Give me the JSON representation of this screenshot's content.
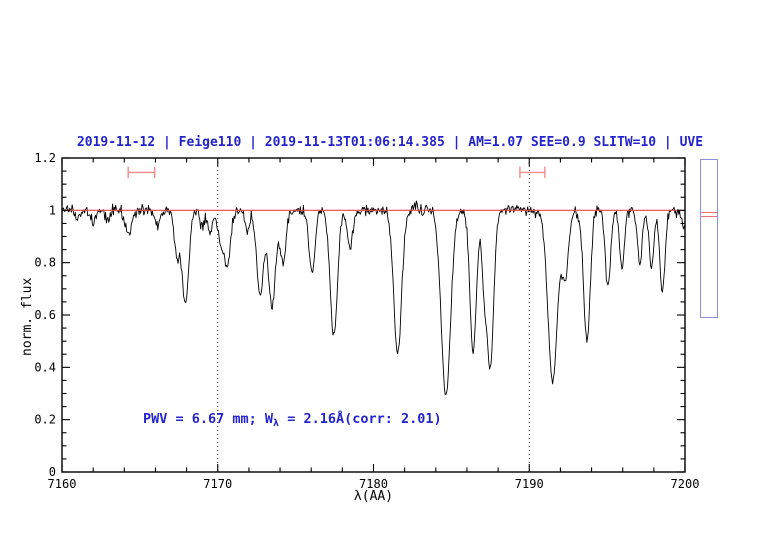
{
  "page": {
    "background": "#ffffff"
  },
  "chart_data": {
    "type": "line",
    "title": "2019-11-12 | Feige110 | 2019-11-13T01:06:14.385 | AM=1.07 SEE=0.9 SLITW=10 | UVE",
    "title_color": "#2424cd",
    "xlabel": "λ(AA)",
    "ylabel": "norm. flux",
    "xlim": [
      7160,
      7200
    ],
    "ylim": [
      0,
      1.2
    ],
    "x_major_ticks": [
      7160,
      7170,
      7180,
      7190,
      7200
    ],
    "x_minor_step": 2,
    "y_major_ticks": [
      0,
      0.2,
      0.4,
      0.6,
      0.8,
      1,
      1.2
    ],
    "y_major_tick_labels": [
      "0",
      "0.2",
      "0.4",
      "0.6",
      "0.8",
      "1",
      "1.2"
    ],
    "y_minor_step": 0.05,
    "guide_lines_x": [
      7170,
      7190
    ],
    "spectrum_color": "#000000",
    "continuum": {
      "level": 1.0,
      "color": "#e04848"
    },
    "noise_sigma": 0.011,
    "sample_step_angstrom": 0.05,
    "absorption_lines_format": [
      "center_angstrom",
      "depth_below_continuum",
      "fwhm_angstrom"
    ],
    "absorption_lines": [
      [
        7161.0,
        0.04,
        0.3
      ],
      [
        7162.0,
        0.05,
        0.35
      ],
      [
        7162.9,
        0.045,
        0.3
      ],
      [
        7164.25,
        0.095,
        0.45
      ],
      [
        7166.15,
        0.06,
        0.35
      ],
      [
        7167.38,
        0.17,
        0.4
      ],
      [
        7167.92,
        0.36,
        0.5
      ],
      [
        7169.0,
        0.07,
        0.3
      ],
      [
        7169.5,
        0.09,
        0.35
      ],
      [
        7170.15,
        0.1,
        0.4
      ],
      [
        7170.6,
        0.22,
        0.5
      ],
      [
        7171.9,
        0.085,
        0.35
      ],
      [
        7172.72,
        0.33,
        0.5
      ],
      [
        7173.48,
        0.37,
        0.55
      ],
      [
        7174.2,
        0.21,
        0.45
      ],
      [
        7176.05,
        0.24,
        0.45
      ],
      [
        7177.45,
        0.48,
        0.55
      ],
      [
        7178.5,
        0.14,
        0.4
      ],
      [
        7181.55,
        0.545,
        0.6
      ],
      [
        7184.65,
        0.71,
        0.7
      ],
      [
        7186.4,
        0.54,
        0.5
      ],
      [
        7187.1,
        0.25,
        0.35
      ],
      [
        7187.5,
        0.6,
        0.5
      ],
      [
        7191.5,
        0.66,
        0.7
      ],
      [
        7192.3,
        0.26,
        0.5
      ],
      [
        7193.7,
        0.5,
        0.5
      ],
      [
        7195.05,
        0.29,
        0.4
      ],
      [
        7195.95,
        0.23,
        0.35
      ],
      [
        7197.1,
        0.215,
        0.35
      ],
      [
        7197.85,
        0.225,
        0.35
      ],
      [
        7198.55,
        0.315,
        0.4
      ],
      [
        7199.95,
        0.07,
        0.3
      ]
    ],
    "emission_spikes": [
      [
        7182.78,
        0.04,
        0.12
      ]
    ],
    "ew_markers": {
      "color": "#f28b8b",
      "y_level": 1.145,
      "cap_half_height": 0.022,
      "windows_format": [
        "center_angstrom",
        "half_width_angstrom"
      ],
      "windows": [
        [
          7165.1,
          0.85
        ],
        [
          7190.2,
          0.8
        ]
      ]
    },
    "annotation": {
      "prefix": "PWV = 6.67 mm; W",
      "subscript": "λ",
      "suffix": " = 2.16Å(corr: 2.01)",
      "color": "#2424cd"
    },
    "side_gauge": {
      "border_color": "#8f8fe0",
      "marker_color": "#ec7272"
    }
  }
}
